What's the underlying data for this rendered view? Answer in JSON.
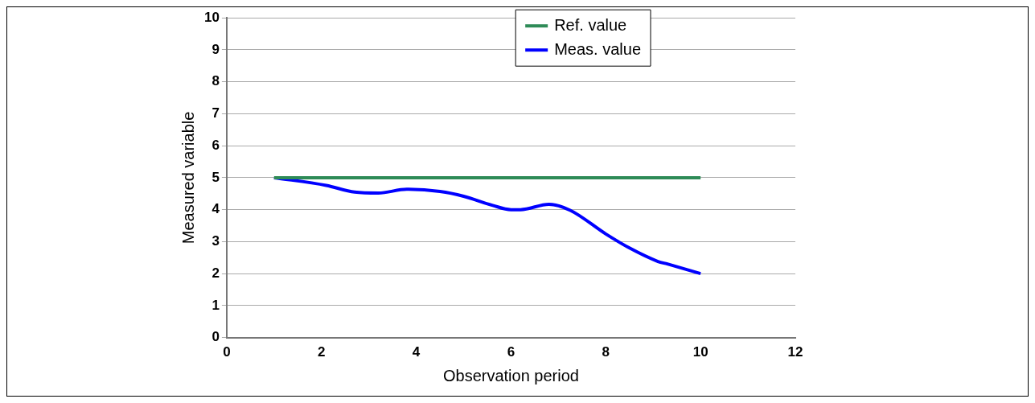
{
  "chart_data": {
    "type": "line",
    "xlabel": "Observation period",
    "ylabel": "Measured variable",
    "xlim": [
      0,
      12
    ],
    "xticks": [
      0,
      2,
      4,
      6,
      8,
      10,
      12
    ],
    "ylim": [
      0,
      10
    ],
    "yticks": [
      0,
      1,
      2,
      3,
      4,
      5,
      6,
      7,
      8,
      9,
      10
    ],
    "grid": "y",
    "legend": "top right",
    "marker": "none",
    "line_style": "solid",
    "series": [
      {
        "name": "Ref. value",
        "color": "#2e8b57",
        "x": [
          1,
          10
        ],
        "values": [
          5,
          5
        ]
      },
      {
        "name": "Meas. value",
        "color": "#0000ff",
        "x": [
          1,
          2.1,
          2.7,
          3.2,
          3.8,
          4.5,
          5,
          5.6,
          6,
          6.2,
          6.8,
          7.25,
          8,
          8.5,
          9.1,
          9.3,
          10
        ],
        "values": [
          5,
          4.76,
          4.55,
          4.52,
          4.64,
          4.57,
          4.42,
          4.14,
          4,
          4,
          4.17,
          3.98,
          3.24,
          2.8,
          2.38,
          2.3,
          2
        ]
      }
    ]
  }
}
